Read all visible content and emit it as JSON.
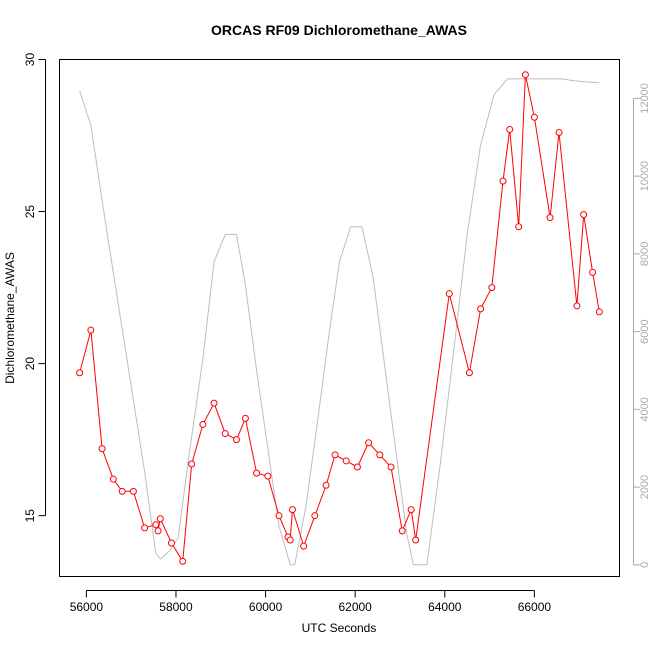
{
  "chart_data": {
    "type": "line",
    "title": "ORCAS RF09 Dichloromethane_AWAS",
    "xlabel": "UTC Seconds",
    "ylabel": "Dichloromethane_AWAS",
    "xlim": [
      55400,
      67900
    ],
    "ylim": [
      13.0,
      30.0
    ],
    "y2lim": [
      -300,
      13000
    ],
    "xticks": [
      56000,
      58000,
      60000,
      62000,
      64000,
      66000
    ],
    "yticks": [
      15,
      20,
      25,
      30
    ],
    "y2ticks": [
      0,
      2000,
      4000,
      6000,
      8000,
      10000,
      12000
    ],
    "colors": {
      "primary": "#ff0000",
      "secondary": "#bebebe"
    },
    "series": [
      {
        "x": [
          55850,
          56100,
          56350,
          56600,
          56800,
          57050,
          57300,
          57550,
          57600,
          57650,
          57900,
          58150,
          58350,
          58600,
          58850,
          59100,
          59350,
          59550,
          59800,
          60050,
          60300,
          60500,
          60550,
          60600,
          60850,
          61100,
          61350,
          61550,
          61800,
          62050,
          62300,
          62550,
          62800,
          63050,
          63250,
          63350,
          64100,
          64550,
          64800,
          65050,
          65300,
          65450,
          65650,
          65800,
          66000,
          66350,
          66550,
          66950,
          67100,
          67300,
          67450
        ],
        "values": [
          19.7,
          21.1,
          17.2,
          16.2,
          15.8,
          15.8,
          14.6,
          14.7,
          14.5,
          14.9,
          14.1,
          13.5,
          16.7,
          18.0,
          18.7,
          17.7,
          17.5,
          18.2,
          16.4,
          16.3,
          15.0,
          14.3,
          14.2,
          15.2,
          14.0,
          15.0,
          16.0,
          17.0,
          16.8,
          16.6,
          17.4,
          17.0,
          16.6,
          14.5,
          15.2,
          14.2,
          22.3,
          19.7,
          21.8,
          22.5,
          26.0,
          27.7,
          24.5,
          29.5,
          28.1,
          24.8,
          27.6,
          21.9,
          24.9,
          23.0,
          21.7
        ]
      },
      {
        "x": [
          55850,
          56100,
          56400,
          56700,
          57000,
          57300,
          57550,
          57650,
          57850,
          58050,
          58300,
          58600,
          58850,
          59100,
          59350,
          59550,
          59800,
          60050,
          60300,
          60550,
          60650,
          60900,
          61150,
          61400,
          61650,
          61900,
          62150,
          62400,
          62650,
          62900,
          63150,
          63300,
          63600,
          63900,
          64200,
          64500,
          64800,
          65100,
          65400,
          65600,
          65850,
          66100,
          66350,
          66600,
          66900,
          67200,
          67450
        ],
        "values": [
          12200,
          11300,
          9000,
          6800,
          4600,
          2400,
          300,
          150,
          350,
          700,
          2900,
          5300,
          7800,
          8500,
          8500,
          7200,
          5000,
          3000,
          1000,
          0,
          0,
          1500,
          3600,
          5800,
          7800,
          8700,
          8700,
          7400,
          5200,
          3000,
          800,
          0,
          0,
          2600,
          5500,
          8500,
          10800,
          12100,
          12500,
          12500,
          12500,
          12500,
          12500,
          12500,
          12450,
          12420,
          12400
        ]
      }
    ]
  }
}
